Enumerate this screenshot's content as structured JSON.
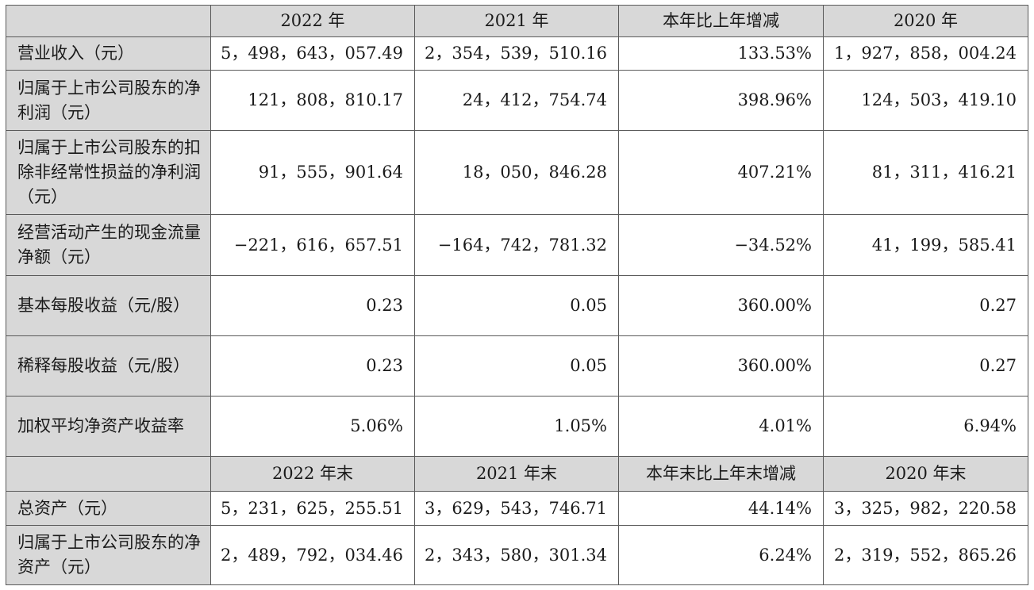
{
  "header1": [
    "",
    "2022 年",
    "2021 年",
    "本年比上年增减",
    "2020 年"
  ],
  "rows1": [
    {
      "label": "营业收入（元）",
      "values": [
        "5，498，643，057.49",
        "2，354，539，510.16",
        "133.53%",
        "1，927，858，004.24"
      ]
    },
    {
      "label": "归属于上市公司股东的净利润（元）",
      "values": [
        "121，808，810.17",
        "24，412，754.74",
        "398.96%",
        "124，503，419.10"
      ]
    },
    {
      "label": "归属于上市公司股东的扣除非经常性损益的净利润（元）",
      "values": [
        "91，555，901.64",
        "18，050，846.28",
        "407.21%",
        "81，311，416.21"
      ]
    },
    {
      "label": "经营活动产生的现金流量净额（元）",
      "values": [
        "−221，616，657.51",
        "−164，742，781.32",
        "−34.52%",
        "41，199，585.41"
      ]
    },
    {
      "label": "基本每股收益（元/股）",
      "values": [
        "0.23",
        "0.05",
        "360.00%",
        "0.27"
      ]
    },
    {
      "label": "稀释每股收益（元/股）",
      "values": [
        "0.23",
        "0.05",
        "360.00%",
        "0.27"
      ]
    },
    {
      "label": "加权平均净资产收益率",
      "values": [
        "5.06%",
        "1.05%",
        "4.01%",
        "6.94%"
      ]
    }
  ],
  "header2": [
    "",
    "2022 年末",
    "2021 年末",
    "本年末比上年末增减",
    "2020 年末"
  ],
  "rows2": [
    {
      "label": "总资产（元）",
      "values": [
        "5，231，625，255.51",
        "3，629，543，746.71",
        "44.14%",
        "3，325，982，220.58"
      ]
    },
    {
      "label": "归属于上市公司股东的净资产（元）",
      "values": [
        "2，489，792，034.46",
        "2，343，580，301.34",
        "6.24%",
        "2，319，552，865.26"
      ]
    }
  ]
}
